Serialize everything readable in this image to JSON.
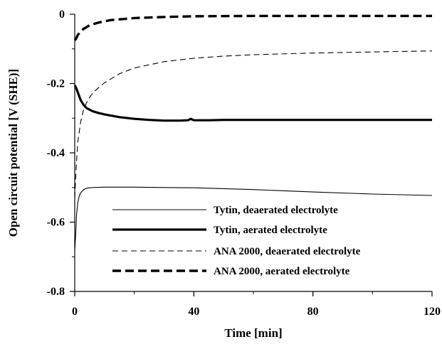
{
  "chart_data": {
    "type": "line",
    "title": "",
    "xlabel": "Time  [min]",
    "ylabel": "Open circuit potential  [V (SHE)]",
    "xlim": [
      0,
      120
    ],
    "ylim": [
      -0.8,
      0
    ],
    "xticks": [
      0,
      40,
      80,
      120
    ],
    "xtick_labels": [
      "0",
      "40",
      "80",
      "120"
    ],
    "yticks": [
      0,
      -0.2,
      -0.4,
      -0.6,
      -0.8
    ],
    "ytick_labels": [
      "0",
      "-0.2",
      "-0.4",
      "-0.6",
      "-0.8"
    ],
    "grid": false,
    "legend_position": "bottom-right",
    "series": [
      {
        "name": "Tytin, deaerated electrolyte",
        "style": "thin-solid",
        "x": [
          0,
          0.3,
          0.6,
          1,
          1.5,
          2,
          3,
          4,
          6,
          10,
          15,
          20,
          30,
          40,
          60,
          80,
          100,
          120
        ],
        "y": [
          -0.68,
          -0.64,
          -0.58,
          -0.545,
          -0.525,
          -0.515,
          -0.506,
          -0.502,
          -0.5,
          -0.499,
          -0.499,
          -0.499,
          -0.5,
          -0.501,
          -0.506,
          -0.513,
          -0.519,
          -0.523
        ]
      },
      {
        "name": "Tytin, aerated electrolyte",
        "style": "thick-solid",
        "x": [
          0,
          0.5,
          1,
          2,
          3,
          4,
          6,
          8,
          10,
          15,
          20,
          25,
          30,
          35,
          38,
          39,
          40,
          45,
          50,
          60,
          80,
          100,
          120
        ],
        "y": [
          -0.205,
          -0.213,
          -0.225,
          -0.248,
          -0.262,
          -0.271,
          -0.28,
          -0.285,
          -0.289,
          -0.297,
          -0.302,
          -0.305,
          -0.307,
          -0.307,
          -0.306,
          -0.302,
          -0.306,
          -0.306,
          -0.305,
          -0.305,
          -0.305,
          -0.305,
          -0.305
        ]
      },
      {
        "name": "ANA 2000, deaerated electrolyte",
        "style": "thin-dashed",
        "x": [
          0,
          0.5,
          1,
          2,
          3,
          4,
          5,
          6,
          8,
          10,
          15,
          20,
          30,
          40,
          50,
          60,
          80,
          100,
          120
        ],
        "y": [
          -0.53,
          -0.44,
          -0.37,
          -0.31,
          -0.275,
          -0.255,
          -0.24,
          -0.228,
          -0.212,
          -0.198,
          -0.172,
          -0.155,
          -0.137,
          -0.127,
          -0.121,
          -0.117,
          -0.112,
          -0.109,
          -0.106
        ]
      },
      {
        "name": "ANA 2000, aerated electrolyte",
        "style": "thick-dashed",
        "x": [
          0,
          0.5,
          1,
          2,
          3,
          5,
          8,
          12,
          20,
          30,
          40,
          60,
          80,
          100,
          120
        ],
        "y": [
          -0.075,
          -0.07,
          -0.06,
          -0.05,
          -0.042,
          -0.032,
          -0.024,
          -0.017,
          -0.011,
          -0.008,
          -0.006,
          -0.005,
          -0.005,
          -0.005,
          -0.005
        ]
      }
    ]
  }
}
